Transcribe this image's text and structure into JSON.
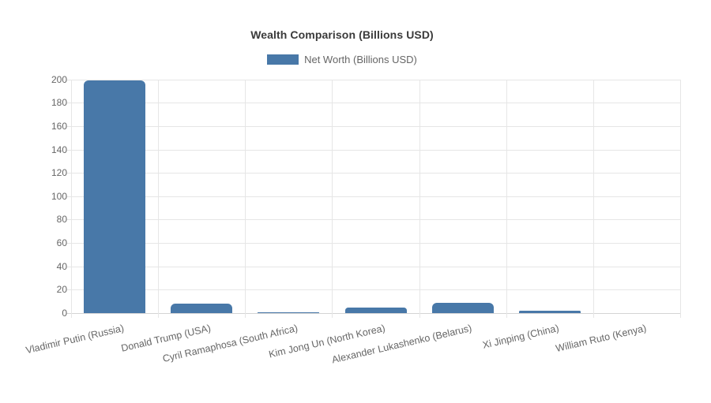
{
  "chart_data": {
    "type": "bar",
    "title": "Wealth Comparison (Billions USD)",
    "legend_label": "Net Worth (Billions USD)",
    "legend_position": "top",
    "categories": [
      "Vladimir Putin (Russia)",
      "Donald Trump (USA)",
      "Cyril Ramaphosa (South Africa)",
      "Kim Jong Un (North Korea)",
      "Alexander Lukashenko (Belarus)",
      "Xi Jinping (China)",
      "William Ruto (Kenya)"
    ],
    "series": [
      {
        "name": "Net Worth (Billions USD)",
        "values": [
          199,
          8,
          0.45,
          5,
          9,
          2,
          0
        ]
      }
    ],
    "xlabel": "",
    "ylabel": "",
    "ylim": [
      0,
      200
    ],
    "ytick_step": 20,
    "ytick_labels": [
      "0",
      "20",
      "40",
      "60",
      "80",
      "100",
      "120",
      "140",
      "160",
      "180",
      "200"
    ],
    "grid": true,
    "bar_color": "#4878a8",
    "grid_color": "#e6e6e6",
    "text_color": "#666666",
    "title_color": "#3a3a3a"
  }
}
